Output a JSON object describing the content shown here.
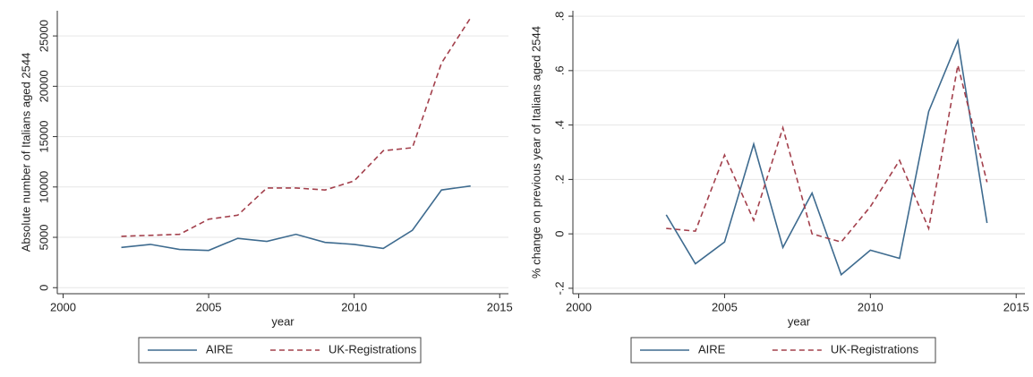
{
  "chart_data": [
    {
      "type": "line",
      "y_label": "Absolute number of Italians aged 2544",
      "x_label": "year",
      "x": [
        2002,
        2003,
        2004,
        2005,
        2006,
        2007,
        2008,
        2009,
        2010,
        2011,
        2012,
        2013,
        2014
      ],
      "series": [
        {
          "name": "AIRE",
          "color": "#3e6b8f",
          "dash": false,
          "values": [
            4000,
            4300,
            3800,
            3700,
            4900,
            4600,
            5300,
            4500,
            4300,
            3900,
            5700,
            9700,
            10100
          ]
        },
        {
          "name": "UK-Registrations",
          "color": "#a3404c",
          "dash": true,
          "values": [
            5100,
            5200,
            5300,
            6800,
            7200,
            9900,
            9900,
            9700,
            10600,
            13600,
            13900,
            22300,
            26800
          ]
        }
      ],
      "xlim": [
        1999.8,
        2015.3
      ],
      "xticks": [
        2000,
        2005,
        2010,
        2015
      ],
      "ylim": [
        -600,
        27500
      ],
      "yticks": [
        0,
        5000,
        10000,
        15000,
        20000,
        25000
      ],
      "grid": true
    },
    {
      "type": "line",
      "y_label": "% change on previous year of Italians aged 2544",
      "x_label": "year",
      "x": [
        2003,
        2004,
        2005,
        2006,
        2007,
        2008,
        2009,
        2010,
        2011,
        2012,
        2013,
        2014
      ],
      "series": [
        {
          "name": "AIRE",
          "color": "#3e6b8f",
          "dash": false,
          "values": [
            0.07,
            -0.11,
            -0.03,
            0.33,
            -0.05,
            0.15,
            -0.15,
            -0.06,
            -0.09,
            0.45,
            0.71,
            0.04
          ]
        },
        {
          "name": "UK-Registrations",
          "color": "#a3404c",
          "dash": true,
          "values": [
            0.02,
            0.01,
            0.29,
            0.05,
            0.39,
            0.0,
            -0.03,
            0.1,
            0.27,
            0.02,
            0.62,
            0.19
          ]
        }
      ],
      "xlim": [
        1999.8,
        2015.3
      ],
      "xticks": [
        2000,
        2005,
        2010,
        2015
      ],
      "ylim": [
        -0.22,
        0.82
      ],
      "yticks": [
        {
          "value": -0.2,
          "label": "-.2"
        },
        0,
        {
          "value": 0.2,
          "label": ".2"
        },
        {
          "value": 0.4,
          "label": ".4"
        },
        {
          "value": 0.6,
          "label": ".6"
        },
        {
          "value": 0.8,
          "label": ".8"
        }
      ],
      "grid": true
    }
  ]
}
